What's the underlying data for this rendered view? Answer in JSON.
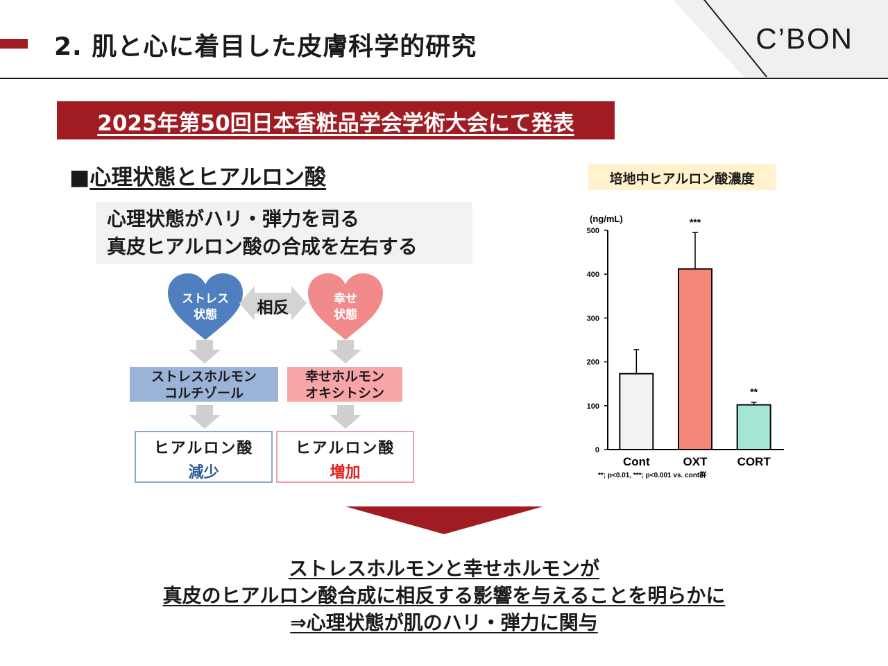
{
  "header": {
    "title": "2. 肌と心に着目した皮膚科学的研究",
    "logo": "C’BON",
    "accent_color": "#a01c22"
  },
  "banner": {
    "text": "2025年第50回日本香粧品学会学術大会にて発表"
  },
  "section": {
    "bullet": "■",
    "title": "心理状態とヒアルロン酸"
  },
  "note": {
    "line1": "心理状態がハリ・弾力を司る",
    "line2": "真皮ヒアルロン酸の合成を左右する"
  },
  "flow": {
    "left_heart": "ストレス\n状態",
    "right_heart": "幸せ\n状態",
    "opposite_label": "相反",
    "left_hormone": "ストレスホルモン\nコルチゾール",
    "right_hormone": "幸せホルモン\nオキシトシン",
    "left_result_title": "ヒアルロン酸",
    "left_result_value": "減少",
    "right_result_title": "ヒアルロン酸",
    "right_result_value": "増加",
    "colors": {
      "blue": "#4f7fbf",
      "pink": "#f28a8c"
    }
  },
  "chart_title": "培地中ヒアルロン酸濃度",
  "chart_data": {
    "type": "bar",
    "ylabel": "(ng/mL)",
    "ylim": [
      0,
      500
    ],
    "yticks": [
      0,
      100,
      200,
      300,
      400,
      500
    ],
    "categories": [
      "Cont",
      "OXT",
      "CORT"
    ],
    "values": [
      173,
      412,
      102
    ],
    "errors": [
      55,
      83,
      6
    ],
    "significance": [
      "",
      "***",
      "**"
    ],
    "colors": [
      "#f2f2f2",
      "#f4877a",
      "#a5e5d3"
    ],
    "footnote": "**; p<0.01, ***; p<0.001 vs. cont群"
  },
  "conclusion": {
    "line1": "ストレスホルモンと幸せホルモンが",
    "line2": "真皮のヒアルロン酸合成に相反する影響を与えることを明らかに",
    "line3": "⇒心理状態が肌のハリ・弾力に関与"
  }
}
